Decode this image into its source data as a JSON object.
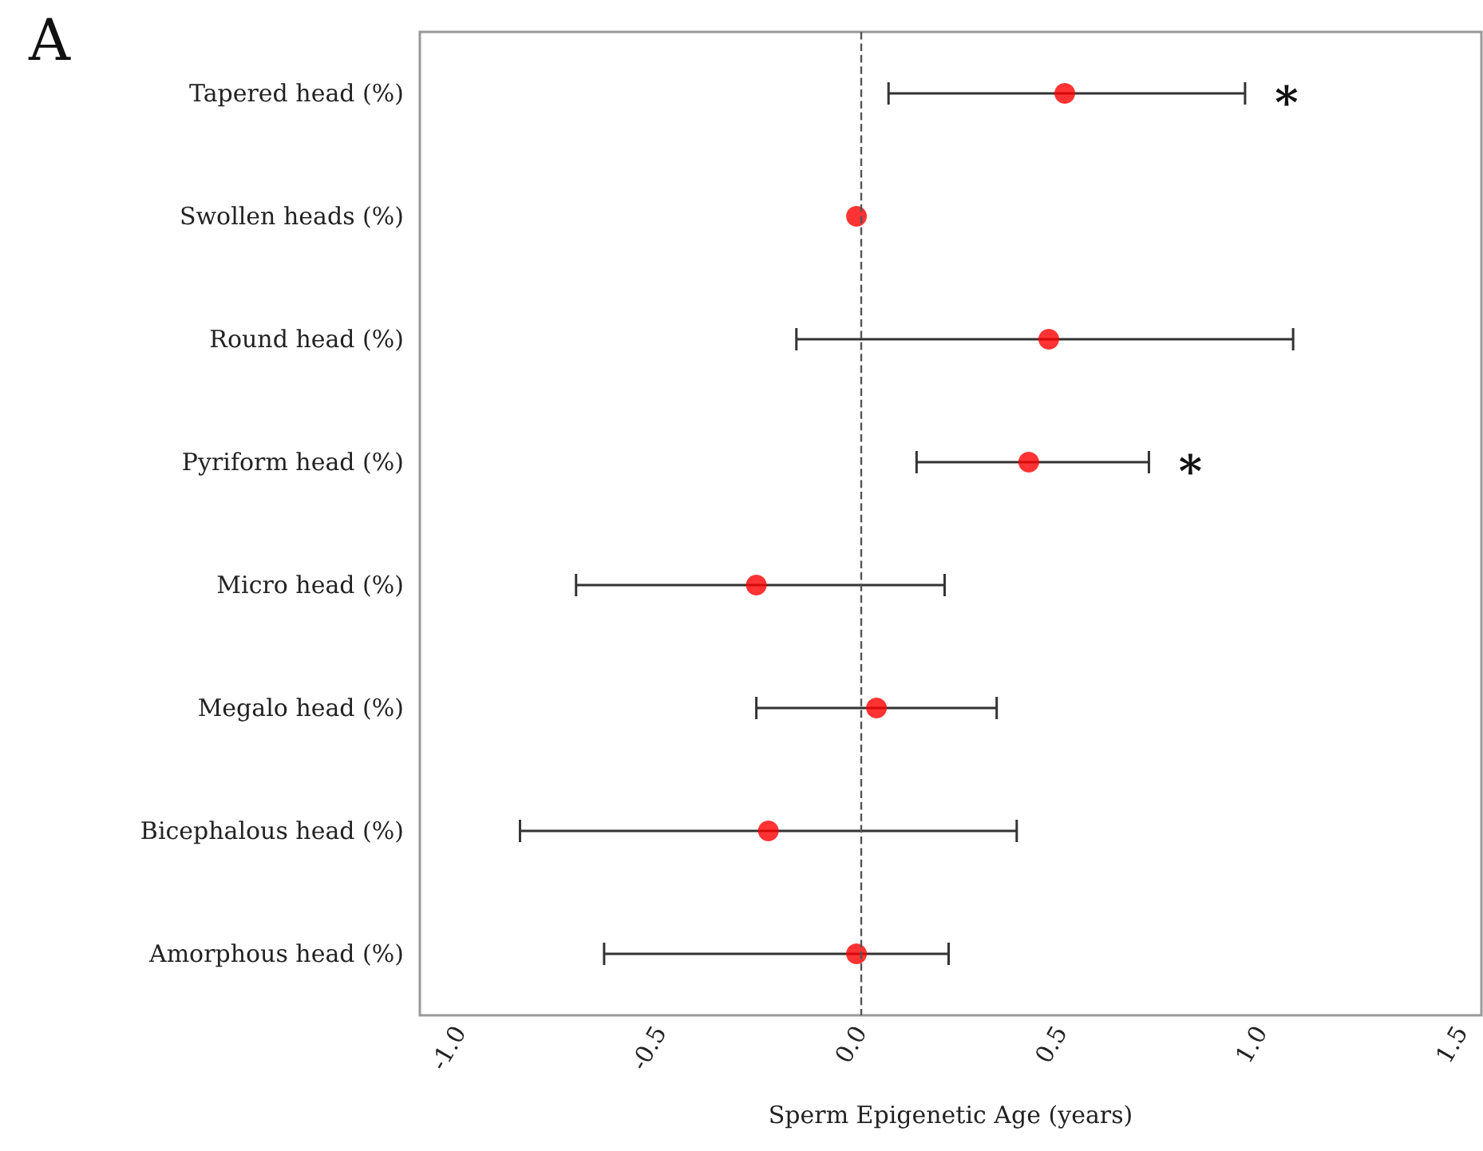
{
  "chart_data": {
    "type": "scatter",
    "orientation": "horizontal",
    "categories": [
      "Tapered head (%)",
      "Swollen heads (%)",
      "Round head (%)",
      "Pyriform head (%)",
      "Micro head (%)",
      "Megalo head (%)",
      "Bicephalous head (%)",
      "Amorphous head (%)"
    ],
    "values": [
      0.51,
      -0.01,
      0.47,
      0.42,
      -0.26,
      0.04,
      -0.23,
      -0.01
    ],
    "errors": [
      [
        0.07,
        0.96
      ],
      null,
      [
        -0.16,
        1.08
      ],
      [
        0.14,
        0.72
      ],
      [
        -0.71,
        0.21
      ],
      [
        -0.26,
        0.34
      ],
      [
        -0.85,
        0.39
      ],
      [
        -0.64,
        0.22
      ]
    ],
    "color": "#ff0000",
    "marker": "circle",
    "xlabel": "Sperm Epigenetic Age (years)",
    "xlim": [
      -1.1,
      1.55
    ],
    "xticks": [
      {
        "value": -1,
        "label": "-1.0"
      },
      -0.5,
      {
        "value": 0,
        "label": "0.0"
      },
      0.5,
      {
        "value": 1,
        "label": "1.0"
      },
      1.5
    ],
    "ref_lines": [
      {
        "axis": "x",
        "value": 0,
        "line_style": "dashed",
        "color": "#555555"
      }
    ],
    "annotations": [
      "A",
      {
        "text": "*",
        "x": 0.96,
        "y": "Tapered head (%)"
      },
      {
        "text": "*",
        "x": 0.72,
        "y": "Pyriform head (%)"
      }
    ],
    "grid": false
  }
}
